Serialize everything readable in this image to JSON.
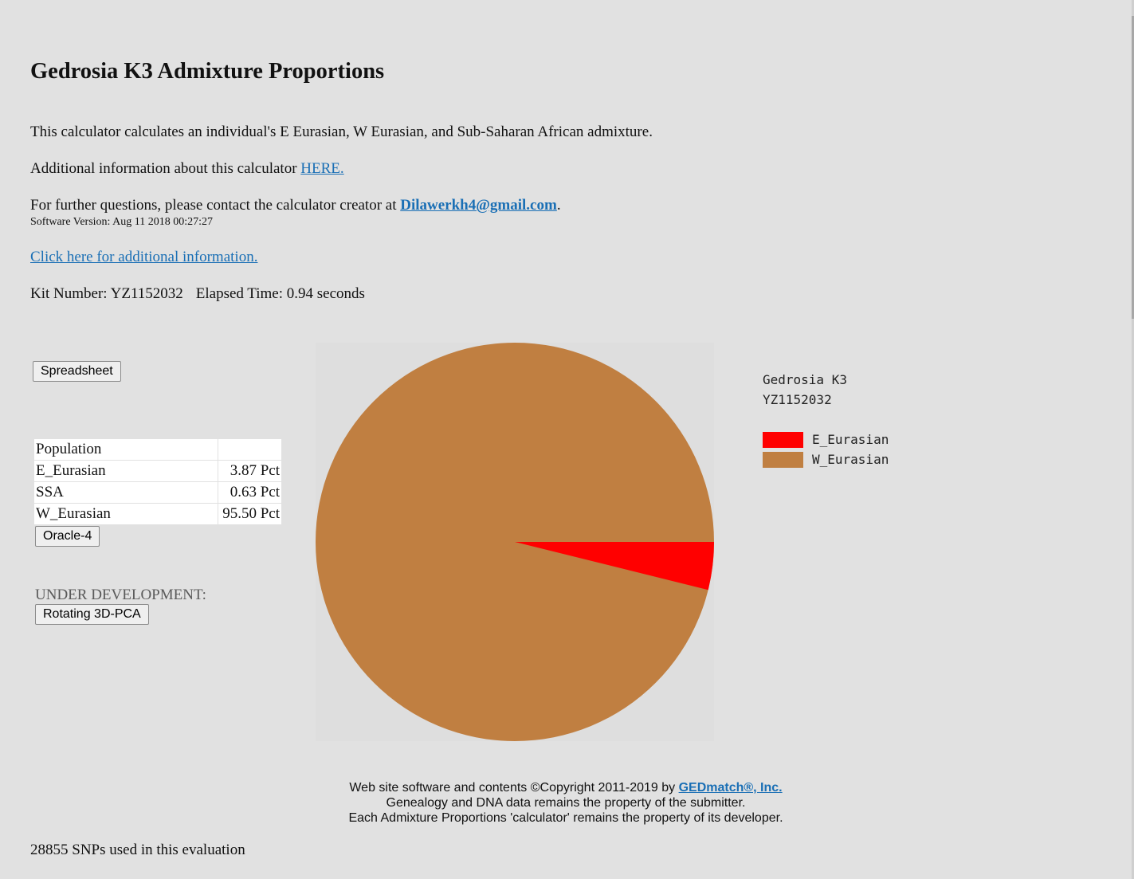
{
  "page": {
    "title": "Gedrosia K3 Admixture Proportions",
    "description": "This calculator calculates an individual's E Eurasian, W Eurasian, and Sub-Saharan African admixture.",
    "additional_info_prefix": "Additional information about this calculator ",
    "additional_info_link": "HERE.",
    "contact_prefix": "For further questions, please contact the calculator creator at ",
    "contact_email": "Dilawerkh4@gmail.com",
    "contact_suffix": ".",
    "software_version": "Software Version: Aug 11 2018 00:27:27",
    "click_here_link": "Click here for additional information.",
    "kit_label": "Kit Number: YZ1152032",
    "elapsed_label": "Elapsed Time: 0.94 seconds"
  },
  "buttons": {
    "spreadsheet": "Spreadsheet",
    "oracle": "Oracle-4",
    "rotating_pca": "Rotating 3D-PCA"
  },
  "results_table": {
    "header": [
      "Population",
      ""
    ],
    "rows": [
      {
        "population": "E_Eurasian",
        "value": "3.87 Pct"
      },
      {
        "population": "SSA",
        "value": "0.63 Pct"
      },
      {
        "population": "W_Eurasian",
        "value": "95.50 Pct"
      }
    ]
  },
  "under_development": "UNDER DEVELOPMENT:",
  "chart_data": {
    "type": "pie",
    "title": "Gedrosia K3",
    "subtitle": "YZ1152032",
    "series": [
      {
        "name": "E_Eurasian",
        "value": 3.87,
        "color": "#ff0000"
      },
      {
        "name": "W_Eurasian",
        "value": 95.5,
        "color": "#c07f41"
      }
    ],
    "legend_placement": "right"
  },
  "footer": {
    "line1_prefix": "Web site software and contents ©Copyright 2011-2019 by ",
    "line1_link": "GEDmatch®, Inc.",
    "line2": "Genealogy and DNA data remains the property of the submitter.",
    "line3": "Each Admixture Proportions 'calculator' remains the property of its developer."
  },
  "snps_text": "28855 SNPs used in this evaluation"
}
